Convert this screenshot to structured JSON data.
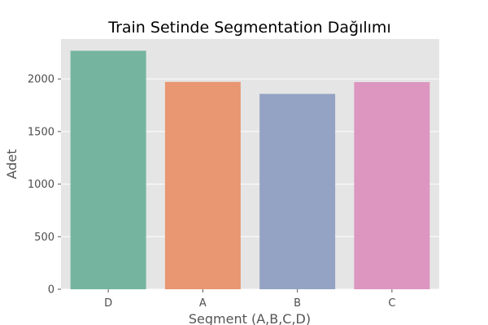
{
  "chart_data": {
    "type": "bar",
    "title": "Train Setinde Segmentation Dağılımı",
    "xlabel": "Segment (A,B,C,D)",
    "ylabel": "Adet",
    "categories": [
      "D",
      "A",
      "B",
      "C"
    ],
    "values": [
      2268,
      1972,
      1858,
      1970
    ],
    "ylim": [
      0,
      2380
    ],
    "yticks": [
      0,
      500,
      1000,
      1500,
      2000
    ],
    "grid": true,
    "legend": "none",
    "colors": {
      "background": "#e5e5e5",
      "bars": [
        "#75b5a0",
        "#e99673",
        "#94a3c3",
        "#dc96c0"
      ]
    }
  }
}
